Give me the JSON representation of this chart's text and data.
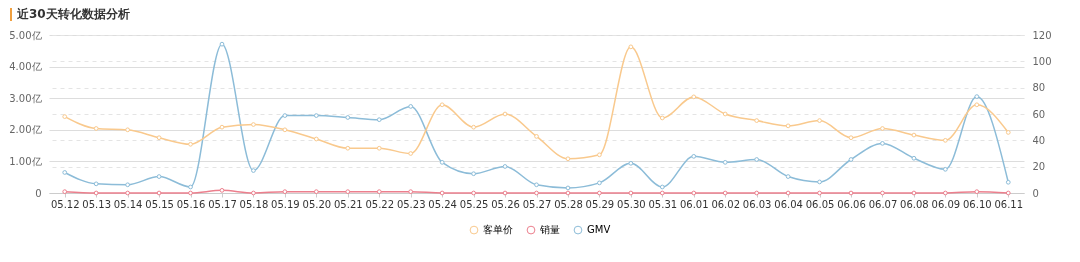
{
  "chart_data": {
    "type": "line",
    "title": "近30天转化数据分析",
    "categories": [
      "05.12",
      "05.13",
      "05.14",
      "05.15",
      "05.16",
      "05.17",
      "05.18",
      "05.19",
      "05.20",
      "05.21",
      "05.22",
      "05.23",
      "05.24",
      "05.25",
      "05.26",
      "05.27",
      "05.28",
      "05.29",
      "05.30",
      "05.31",
      "06.01",
      "06.02",
      "06.03",
      "06.04",
      "06.05",
      "06.06",
      "06.07",
      "06.08",
      "06.09",
      "06.10",
      "06.11"
    ],
    "series": [
      {
        "name": "客单价",
        "color": "#f9c98d",
        "axis": "y2",
        "values": [
          58,
          49,
          48,
          42,
          37,
          50,
          52,
          48,
          41,
          34,
          34,
          30,
          67,
          50,
          60,
          43,
          26,
          29,
          111,
          57,
          73,
          60,
          55,
          51,
          55,
          42,
          49,
          44,
          40,
          67,
          46
        ]
      },
      {
        "name": "销量",
        "color": "#ec7f8d",
        "axis": "y2",
        "values": [
          1,
          0,
          0,
          0,
          0,
          2,
          0,
          1,
          1,
          1,
          1,
          1,
          0,
          0,
          0,
          0,
          0,
          0,
          0,
          0,
          0,
          0,
          0,
          0,
          0,
          0,
          0,
          0,
          0,
          1,
          0
        ]
      },
      {
        "name": "GMV",
        "color": "#8cbcd8",
        "values": [
          0.65,
          0.29,
          0.26,
          0.52,
          0.19,
          4.71,
          0.71,
          2.45,
          2.45,
          2.39,
          2.32,
          2.74,
          0.97,
          0.61,
          0.84,
          0.26,
          0.16,
          0.32,
          0.94,
          0.19,
          1.16,
          0.97,
          1.06,
          0.52,
          0.35,
          1.06,
          1.57,
          1.1,
          0.75,
          3.05,
          0.34
        ]
      }
    ],
    "ylim": [
      0,
      5
    ],
    "yticks": [
      0,
      {
        "value": 1,
        "label": "1.00亿"
      },
      {
        "value": 2,
        "label": "2.00亿"
      },
      {
        "value": 3,
        "label": "3.00亿"
      },
      {
        "value": 4,
        "label": "4.00亿"
      },
      {
        "value": 5,
        "label": "5.00亿"
      }
    ],
    "y2lim": [
      0,
      120
    ],
    "y2ticks": [
      0,
      20,
      40,
      60,
      80,
      100,
      120
    ],
    "grid": true,
    "legend": "bottom",
    "marker": "circle",
    "line_style": "solid"
  }
}
